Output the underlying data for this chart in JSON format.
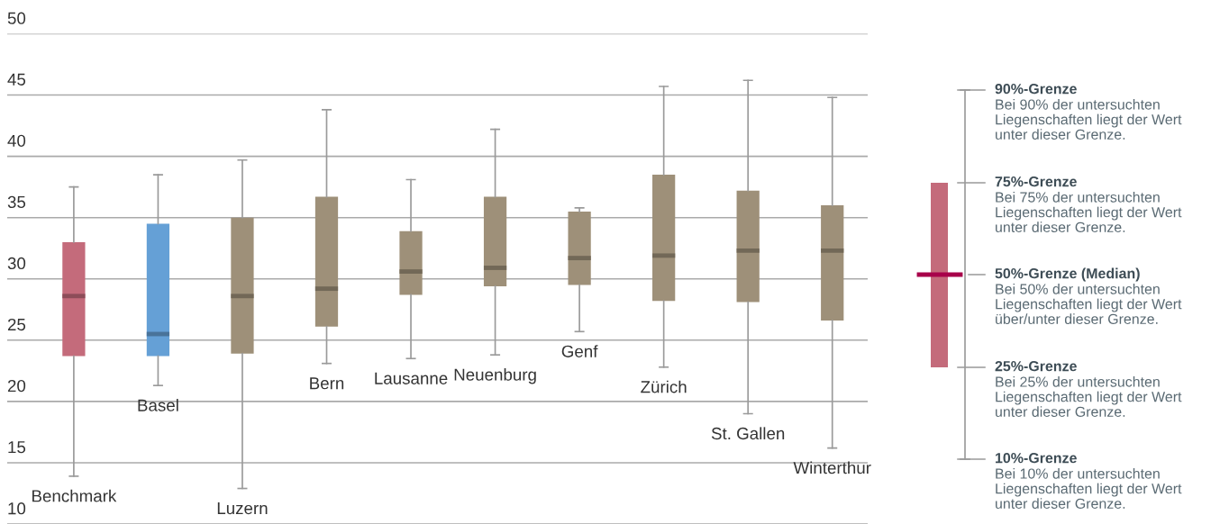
{
  "chart_data": {
    "type": "box",
    "categories": [
      "Benchmark",
      "Basel",
      "Luzern",
      "Bern",
      "Lausanne",
      "Neuenburg",
      "Genf",
      "Zürich",
      "St. Gallen",
      "Winterthur"
    ],
    "colors": [
      "#c46b7b",
      "#65a0d6",
      "#9e9079",
      "#9e9079",
      "#9e9079",
      "#9e9079",
      "#9e9079",
      "#9e9079",
      "#9e9079",
      "#9e9079"
    ],
    "boxes": [
      {
        "low": 13.9,
        "q1": 23.7,
        "median": 28.6,
        "q3": 33.0,
        "high": 37.5
      },
      {
        "low": 21.3,
        "q1": 23.7,
        "median": 25.5,
        "q3": 34.5,
        "high": 38.5
      },
      {
        "low": 12.9,
        "q1": 23.9,
        "median": 28.6,
        "q3": 35.0,
        "high": 39.7
      },
      {
        "low": 23.1,
        "q1": 26.1,
        "median": 29.2,
        "q3": 36.7,
        "high": 43.8
      },
      {
        "low": 23.5,
        "q1": 28.7,
        "median": 30.6,
        "q3": 33.9,
        "high": 38.1
      },
      {
        "low": 23.8,
        "q1": 29.4,
        "median": 30.9,
        "q3": 36.7,
        "high": 42.2
      },
      {
        "low": 25.7,
        "q1": 29.5,
        "median": 31.7,
        "q3": 35.5,
        "high": 35.8
      },
      {
        "low": 22.8,
        "q1": 28.2,
        "median": 31.9,
        "q3": 38.5,
        "high": 45.7
      },
      {
        "low": 19.0,
        "q1": 28.1,
        "median": 32.3,
        "q3": 37.2,
        "high": 46.2
      },
      {
        "low": 16.2,
        "q1": 26.6,
        "median": 32.3,
        "q3": 36.0,
        "high": 44.8
      }
    ],
    "ylim": [
      10,
      50
    ],
    "yticks": [
      10,
      15,
      20,
      25,
      30,
      35,
      40,
      45,
      50
    ],
    "grid": "y",
    "annotations": [
      "90%-Grenze",
      "Bei 90% der untersuchten\nLiegenschaften liegt der Wert\nunter dieser Grenze.",
      "75%-Grenze",
      "Bei 75% der untersuchten\nLiegenschaften liegt der Wert\nunter dieser Grenze.",
      "50%-Grenze (Median)",
      "Bei 50% der untersuchten\nLiegenschaften liegt der Wert\nüber/unter dieser Grenze.",
      "25%-Grenze",
      "Bei 25% der untersuchten\nLiegenschaften liegt der Wert\nunter dieser Grenze.",
      "10%-Grenze",
      "Bei 10% der untersuchten\nLiegenschaften liegt der Wert\nunter dieser Grenze."
    ]
  }
}
